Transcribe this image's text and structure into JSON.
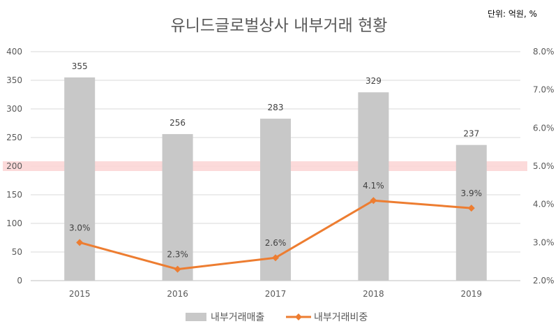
{
  "chart_data": {
    "type": "bar",
    "title": "유니드글로벌상사 내부거래 현황",
    "unit_note": "단위: 억원, %",
    "categories": [
      "2015",
      "2016",
      "2017",
      "2018",
      "2019"
    ],
    "series": [
      {
        "name": "내부거래매출",
        "type": "bar",
        "axis": "left",
        "values": [
          355,
          256,
          283,
          329,
          237
        ],
        "labels": [
          "355",
          "256",
          "283",
          "329",
          "237"
        ],
        "color": "#c8c8c8"
      },
      {
        "name": "내부거래비중",
        "type": "line",
        "axis": "right",
        "values": [
          3.0,
          2.3,
          2.6,
          4.1,
          3.9
        ],
        "labels": [
          "3.0%",
          "2.3%",
          "2.6%",
          "4.1%",
          "3.9%"
        ],
        "color": "#ed7d31"
      }
    ],
    "y_left": {
      "min": 0,
      "max": 400,
      "ticks": [
        "0",
        "50",
        "100",
        "150",
        "200",
        "250",
        "300",
        "350",
        "400"
      ]
    },
    "y_right": {
      "min": 2.0,
      "max": 8.0,
      "ticks": [
        "2.0%",
        "3.0%",
        "4.0%",
        "5.0%",
        "6.0%",
        "7.0%",
        "8.0%"
      ]
    },
    "highlight_band": {
      "axis": "left",
      "value": 200,
      "color": "#fbd3d3"
    },
    "grid": true,
    "legend": "bottom"
  }
}
